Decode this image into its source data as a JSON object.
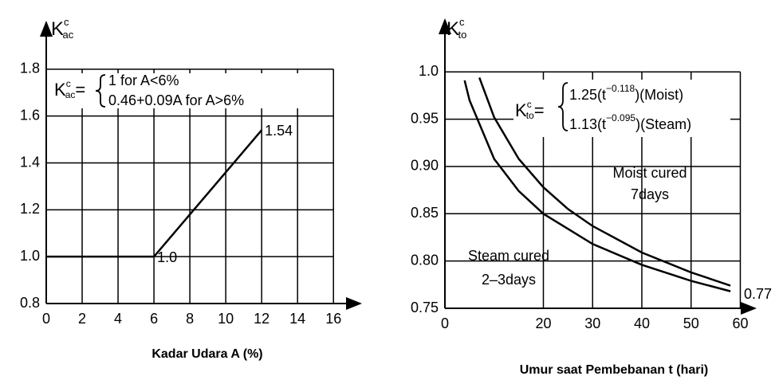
{
  "chart_data": [
    {
      "type": "line",
      "y_label": {
        "main": "K",
        "sup": "c",
        "sub": "ac"
      },
      "x_label": "Kadar Udara A (%)",
      "annotation": {
        "lhs": {
          "main": "K",
          "sup": "c",
          "sub": "ac"
        },
        "eq": "=",
        "cases": [
          "1  for A<6%",
          "0.46+0.09A  for A>6%"
        ]
      },
      "x": [
        0,
        6,
        12
      ],
      "values": [
        1,
        1,
        1.54
      ],
      "value_labels": [
        null,
        "1.0",
        "1.54"
      ],
      "color": "#000000",
      "xlim": [
        0,
        17.5
      ],
      "xticks": [
        0,
        2,
        4,
        6,
        8,
        10,
        12,
        14,
        16
      ],
      "ylim": [
        0.8,
        2.0
      ],
      "yticks": [
        0.8,
        {
          "value": 1,
          "label": "1.0"
        },
        1.2,
        1.4,
        1.6,
        1.8
      ],
      "grid": true
    },
    {
      "type": "line",
      "y_label": {
        "main": "K",
        "sup": "c",
        "sub": "to"
      },
      "x_label": "Umur saat Pembebanan t (hari)",
      "annotation": {
        "lhs": {
          "main": "K",
          "sup": "c",
          "sub": "to"
        },
        "eq": "=",
        "cases": [
          [
            "1.25(t",
            "−0.118",
            ")(Moist)"
          ],
          [
            "1.13(t",
            "−0.095",
            ")(Steam)"
          ]
        ]
      },
      "labels": [
        [
          "Moist cured",
          "7days"
        ],
        [
          "Steam cured",
          "2–3days"
        ],
        [
          "0.77"
        ]
      ],
      "series": [
        {
          "color": "#000000",
          "x": [
            7,
            10,
            15,
            20,
            25,
            30,
            40,
            50,
            58
          ],
          "values": [
            0.994,
            0.952,
            0.908,
            0.878,
            0.855,
            0.837,
            0.809,
            0.788,
            0.774
          ]
        },
        {
          "color": "#000000",
          "x": [
            4,
            5,
            10,
            15,
            20,
            30,
            40,
            50,
            58
          ],
          "values": [
            0.991,
            0.97,
            0.908,
            0.874,
            0.85,
            0.818,
            0.796,
            0.779,
            0.768
          ]
        }
      ],
      "xlim": [
        0,
        63
      ],
      "xticks": [
        0,
        20,
        30,
        40,
        50,
        60
      ],
      "ylim": [
        0.75,
        1.055
      ],
      "yticks": [
        0.75,
        {
          "value": 0.8,
          "label": "0.80"
        },
        0.85,
        {
          "value": 0.9,
          "label": "0.90"
        },
        0.95,
        {
          "value": 1,
          "label": "1.0"
        }
      ],
      "grid": true
    }
  ]
}
